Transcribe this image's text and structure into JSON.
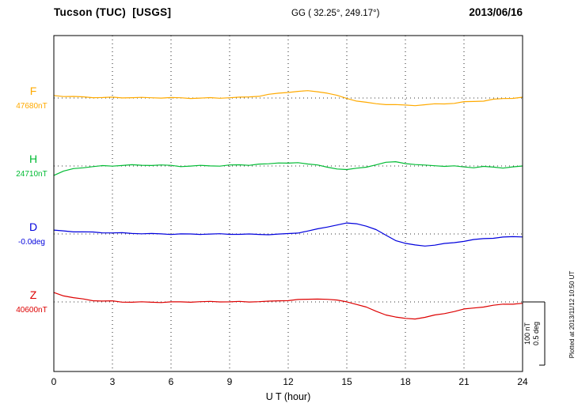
{
  "header": {
    "title": "Tucson (TUC)  [USGS]",
    "coords": "GG ( 32.25°, 249.17°)",
    "date": "2013/06/16"
  },
  "footer": {
    "plotted_at": "Plotted at 2013/11/12 10:50 UT"
  },
  "scalebar": {
    "nT_label": "100 nT",
    "deg_label": "0.5 deg"
  },
  "chart_data": {
    "type": "line",
    "title": "Tucson (TUC) [USGS] magnetogram 2013/06/16",
    "xlabel": "U T (hour)",
    "x_range": [
      0,
      24
    ],
    "x_ticks": [
      0,
      3,
      6,
      9,
      12,
      15,
      18,
      21,
      24
    ],
    "x_step_hours": 0.5,
    "grid": "vertical dotted lines every 3 hours; dotted horizontal baseline per trace",
    "legend_position": "left of each trace",
    "scalebar": {
      "nT_per_bar": 100,
      "deg_per_bar": 0.5
    },
    "series": [
      {
        "name": "F",
        "value_label": "47680nT",
        "baseline_value": 47680,
        "unit": "nT",
        "units_per_bar": 100,
        "color": "#FFAA00",
        "offsets": [
          4,
          3,
          2.5,
          2,
          1.5,
          1,
          1,
          0.5,
          0.5,
          0,
          0,
          0,
          0,
          0,
          0,
          0,
          0.5,
          0.5,
          1,
          1,
          2,
          3,
          5,
          7,
          9,
          10,
          11,
          10.5,
          8,
          4,
          0,
          -4,
          -7,
          -9,
          -10,
          -11,
          -12,
          -12,
          -11,
          -10,
          -9,
          -8,
          -6,
          -5,
          -4,
          -2,
          -1,
          0,
          1
        ]
      },
      {
        "name": "H",
        "value_label": "24710nT",
        "baseline_value": 24710,
        "unit": "nT",
        "units_per_bar": 100,
        "color": "#00BB33",
        "offsets": [
          -14,
          -8,
          -4,
          -2,
          -1,
          0,
          0,
          0.5,
          1,
          1,
          1,
          1,
          1,
          0,
          0,
          1,
          1,
          0,
          1,
          2,
          1,
          2,
          3,
          5,
          4,
          5,
          4,
          2,
          -2,
          -4,
          -5,
          -4,
          -2,
          2,
          5,
          6,
          4,
          2,
          1,
          1,
          0,
          0,
          -1,
          -2,
          -1,
          -2,
          -3,
          -2,
          -1
        ]
      },
      {
        "name": "D",
        "value_label": "-0.0deg",
        "baseline_value": -0.0,
        "unit": "deg",
        "units_per_bar": 0.5,
        "color": "#0000DD",
        "offsets": [
          0.03,
          0.025,
          0.02,
          0.015,
          0.012,
          0.009,
          0.006,
          0.005,
          0.004,
          0.003,
          0.002,
          0.002,
          0.001,
          0.001,
          0,
          0,
          -0.001,
          -0.002,
          -0.003,
          -0.004,
          -0.005,
          -0.005,
          -0.004,
          -0.002,
          0.003,
          0.012,
          0.025,
          0.04,
          0.058,
          0.072,
          0.083,
          0.08,
          0.062,
          0.03,
          -0.012,
          -0.05,
          -0.075,
          -0.088,
          -0.091,
          -0.086,
          -0.076,
          -0.066,
          -0.056,
          -0.047,
          -0.039,
          -0.033,
          -0.028,
          -0.025,
          -0.022
        ]
      },
      {
        "name": "Z",
        "value_label": "40600nT",
        "baseline_value": 40600,
        "unit": "nT",
        "units_per_bar": 100,
        "color": "#DD0000",
        "offsets": [
          15,
          10,
          6,
          4,
          2,
          1,
          1,
          0,
          0,
          0,
          0,
          0,
          0,
          0,
          0,
          0,
          0,
          0,
          0,
          0,
          0,
          1,
          1,
          2,
          3,
          4,
          4,
          5,
          4,
          2,
          0,
          -4,
          -9,
          -15,
          -20,
          -24,
          -26,
          -26,
          -24,
          -21,
          -18,
          -15,
          -12,
          -10,
          -8,
          -6,
          -4,
          -3,
          -2
        ]
      }
    ]
  }
}
